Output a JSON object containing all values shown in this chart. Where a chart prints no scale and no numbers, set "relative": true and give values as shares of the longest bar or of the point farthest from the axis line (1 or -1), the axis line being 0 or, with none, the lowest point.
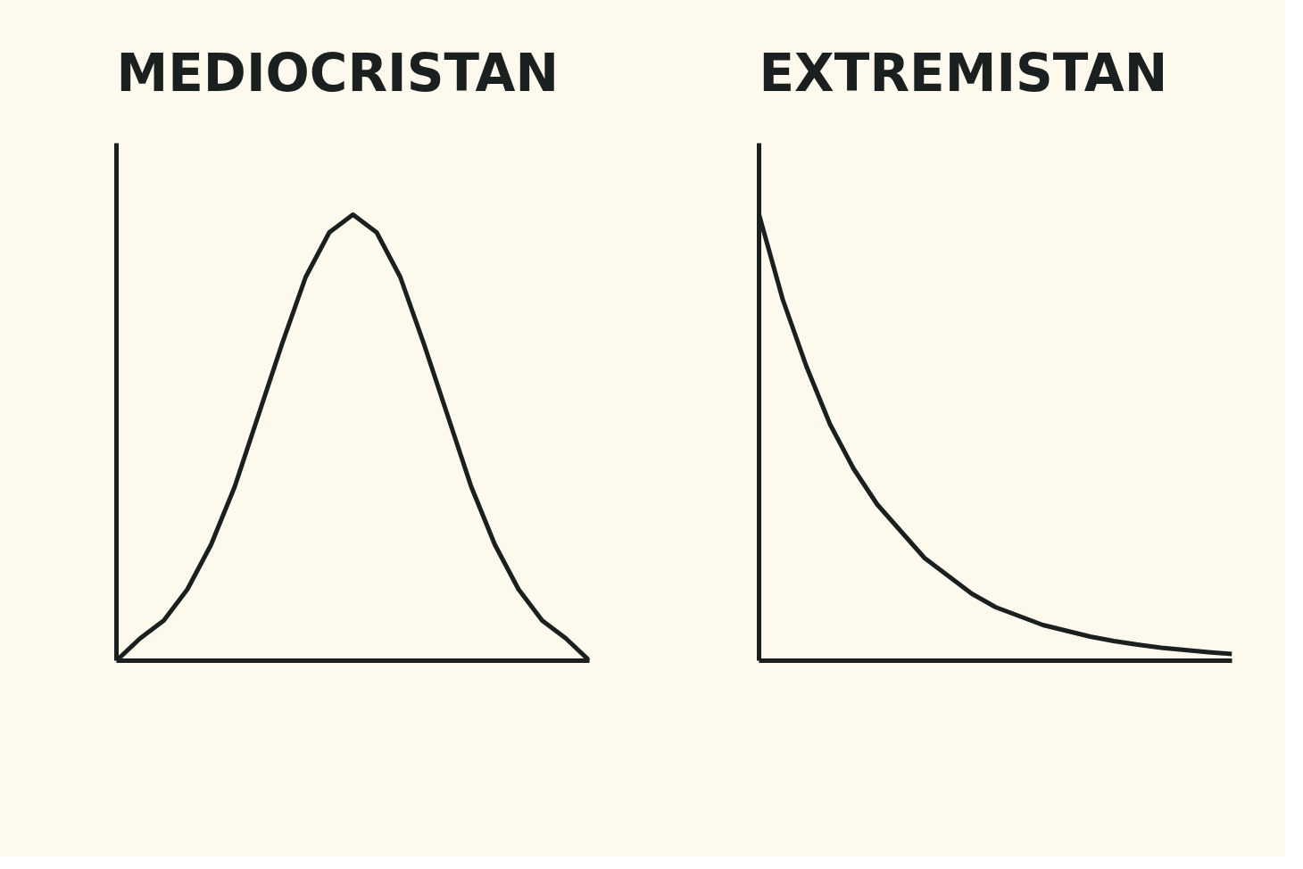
{
  "chart_data": [
    {
      "type": "line",
      "title": "MEDIOCRISTAN",
      "relative": true,
      "marker": "none",
      "line_style": "solid",
      "categories": [
        null,
        null,
        null,
        null,
        null,
        null,
        null,
        null,
        null,
        null,
        null,
        null,
        null,
        null,
        null,
        null,
        null,
        null,
        null,
        null,
        null
      ],
      "series": [
        {
          "color": "#1a1f1f",
          "values": [
            0,
            0.05,
            0.09,
            0.16,
            0.26,
            0.39,
            0.55,
            0.71,
            0.86,
            0.96,
            1,
            0.96,
            0.86,
            0.71,
            0.55,
            0.39,
            0.26,
            0.16,
            0.09,
            0.05,
            0
          ]
        }
      ]
    },
    {
      "type": "line",
      "title": "EXTREMISTAN",
      "relative": true,
      "marker": "none",
      "line_style": "solid",
      "categories": [
        null,
        null,
        null,
        null,
        null,
        null,
        null,
        null,
        null,
        null,
        null,
        null,
        null,
        null,
        null,
        null,
        null,
        null,
        null,
        null,
        null
      ],
      "series": [
        {
          "color": "#1a1f1f",
          "values": [
            1,
            0.81,
            0.66,
            0.53,
            0.43,
            0.35,
            0.29,
            0.23,
            0.19,
            0.15,
            0.12,
            0.1,
            0.08,
            0.067,
            0.054,
            0.044,
            0.036,
            0.029,
            0.024,
            0.019,
            0.015
          ]
        }
      ]
    }
  ]
}
